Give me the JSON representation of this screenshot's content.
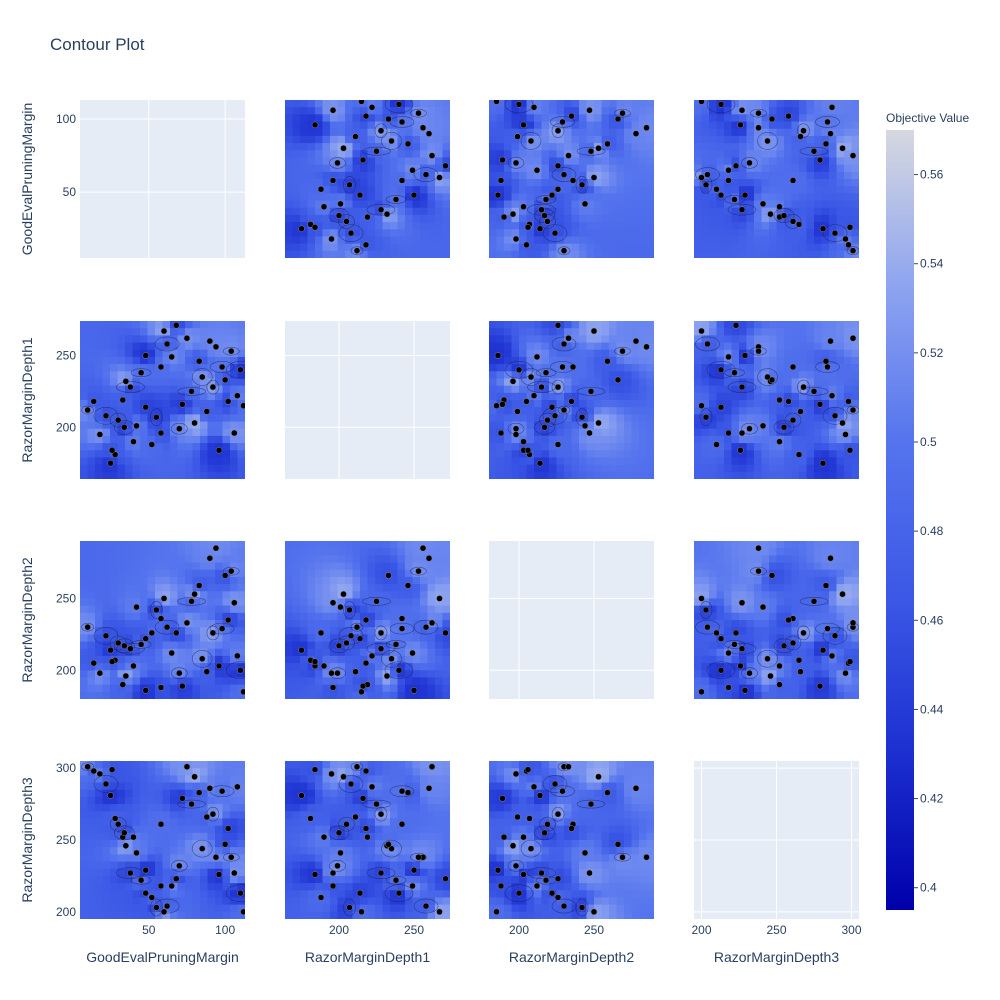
{
  "chart_data": {
    "type": "contour",
    "title": "Contour Plot",
    "params": [
      "GoodEvalPruningMargin",
      "RazorMarginDepth1",
      "RazorMarginDepth2",
      "RazorMarginDepth3"
    ],
    "ranges": [
      [
        5,
        113
      ],
      [
        164,
        274
      ],
      [
        180,
        290
      ],
      [
        195,
        305
      ]
    ],
    "ticks": [
      [
        50,
        100
      ],
      [
        200,
        250
      ],
      [
        200,
        250
      ],
      [
        200,
        250,
        300
      ]
    ],
    "colorbar": {
      "title": "Objective Value",
      "min": 0.395,
      "max": 0.57,
      "ticks": [
        0.4,
        0.42,
        0.44,
        0.46,
        0.48,
        0.5,
        0.52,
        0.54,
        0.56
      ],
      "ticklabels": [
        "0.4",
        "0.42",
        "0.44",
        "0.46",
        "0.48",
        "0.5",
        "0.52",
        "0.54",
        "0.56"
      ],
      "colors": [
        "#0000aa",
        "#1c2fd0",
        "#3b58e6",
        "#5574ee",
        "#8ea4f0",
        "#d6d8e0"
      ]
    },
    "trials": [
      [
        10,
        212,
        230,
        301
      ],
      [
        14,
        218,
        205,
        298
      ],
      [
        18,
        195,
        198,
        296
      ],
      [
        22,
        208,
        224,
        289
      ],
      [
        25,
        175,
        214,
        281
      ],
      [
        28,
        181,
        207,
        265
      ],
      [
        30,
        205,
        219,
        261
      ],
      [
        33,
        219,
        190,
        252
      ],
      [
        35,
        232,
        196,
        246
      ],
      [
        38,
        228,
        215,
        227
      ],
      [
        40,
        190,
        203,
        252
      ],
      [
        42,
        201,
        244,
        241
      ],
      [
        45,
        238,
        218,
        222
      ],
      [
        48,
        214,
        222,
        213
      ],
      [
        52,
        188,
        226,
        210
      ],
      [
        55,
        207,
        242,
        203
      ],
      [
        58,
        242,
        236,
        261
      ],
      [
        60,
        267,
        250,
        200
      ],
      [
        62,
        258,
        230,
        204
      ],
      [
        65,
        249,
        212,
        218
      ],
      [
        68,
        271,
        226,
        223
      ],
      [
        70,
        199,
        198,
        232
      ],
      [
        72,
        216,
        189,
        279
      ],
      [
        75,
        262,
        233,
        301
      ],
      [
        78,
        225,
        248,
        275
      ],
      [
        80,
        203,
        253,
        294
      ],
      [
        83,
        246,
        259,
        283
      ],
      [
        85,
        235,
        208,
        244
      ],
      [
        88,
        211,
        199,
        266
      ],
      [
        90,
        260,
        278,
        286
      ],
      [
        92,
        228,
        226,
        268
      ],
      [
        94,
        256,
        285,
        238
      ],
      [
        96,
        184,
        203,
        226
      ],
      [
        98,
        242,
        229,
        284
      ],
      [
        100,
        233,
        266,
        247
      ],
      [
        102,
        218,
        235,
        258
      ],
      [
        104,
        253,
        269,
        238
      ],
      [
        106,
        196,
        247,
        227
      ],
      [
        108,
        222,
        210,
        287
      ],
      [
        110,
        240,
        200,
        213
      ],
      [
        112,
        215,
        185,
        200
      ],
      [
        26,
        184,
        206,
        299
      ],
      [
        34,
        200,
        217,
        255
      ],
      [
        48,
        250,
        186,
        229
      ],
      [
        58,
        196,
        188,
        218
      ]
    ]
  },
  "note": "trial coordinates are (GoodEvalPruningMargin, RazorMarginDepth1, RazorMarginDepth2, RazorMarginDepth3) in data units"
}
